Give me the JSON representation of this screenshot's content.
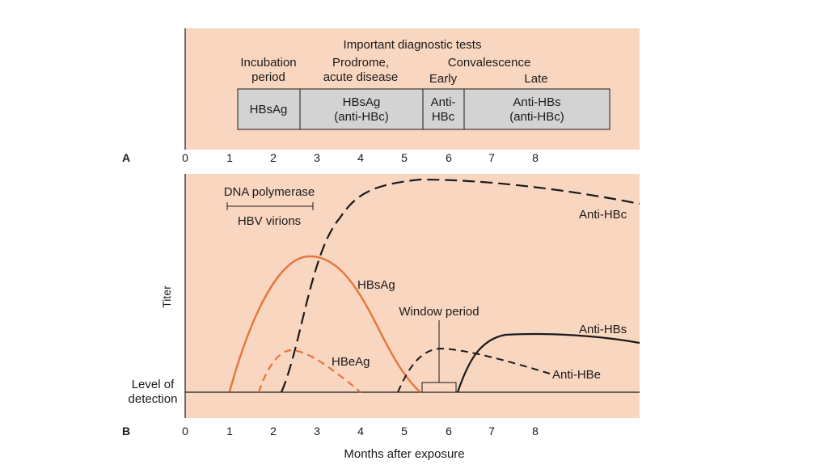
{
  "panel_a": {
    "letter": "A",
    "title": "Important diagnostic tests",
    "phases": {
      "incubation": [
        "Incubation",
        "period"
      ],
      "prodrome": [
        "Prodrome,",
        "acute disease"
      ],
      "convalescence": "Convalescence",
      "early": "Early",
      "late": "Late"
    },
    "boxes": {
      "hbsag": [
        "HBsAg"
      ],
      "hbsag_antihbc": [
        "HBsAg",
        "(anti-HBc)"
      ],
      "antihbc": [
        "Anti-",
        "HBc"
      ],
      "antihbs": [
        "Anti-HBs",
        "(anti-HBc)"
      ]
    },
    "ticks": [
      "0",
      "1",
      "2",
      "3",
      "4",
      "5",
      "6",
      "7",
      "8"
    ]
  },
  "panel_b": {
    "letter": "B",
    "ylabel": "Titer",
    "xlabel": "Months after exposure",
    "detection_label": [
      "Level of",
      "detection"
    ],
    "dna_polymerase": "DNA polymerase",
    "hbv_virions": "HBV virions",
    "window_period": "Window period",
    "curves": {
      "anti_hbc": "Anti-HBc",
      "hbsag": "HBsAg",
      "hbeag": "HBeAg",
      "anti_hbs": "Anti-HBs",
      "anti_hbe": "Anti-HBe"
    },
    "ticks": [
      "0",
      "1",
      "2",
      "3",
      "4",
      "5",
      "6",
      "7",
      "8"
    ]
  },
  "colors": {
    "panel_bg": "#f9d6c0",
    "box_fill": "#d3d3d3",
    "orange": "#e8743b",
    "black": "#1a1a1a"
  }
}
